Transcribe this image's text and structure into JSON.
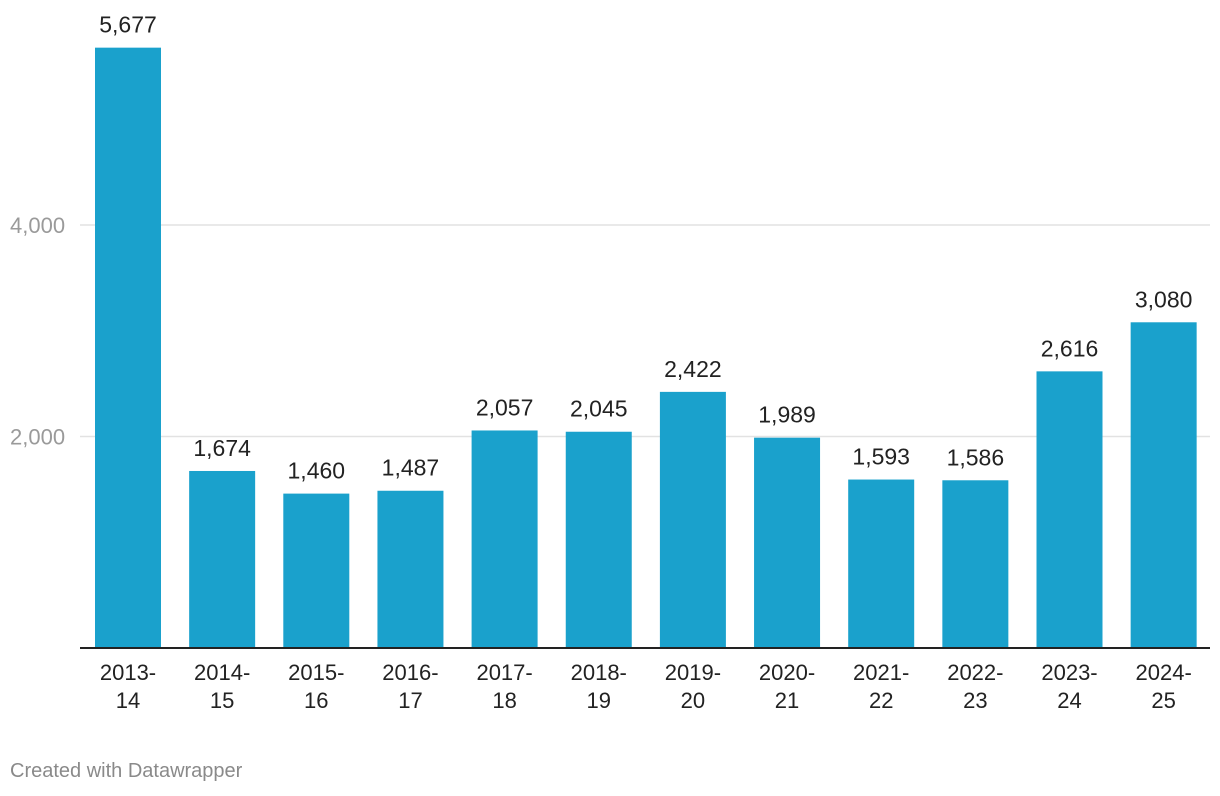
{
  "credit": "Created with Datawrapper",
  "colors": {
    "bar": "#1aa1cc",
    "gridline": "#e2e2e2",
    "baseline": "#222222",
    "value_text": "#222222",
    "y_tick_text": "#9a9a9a"
  },
  "chart_data": {
    "type": "bar",
    "title": "",
    "xlabel": "",
    "ylabel": "",
    "categories": [
      [
        "2013-",
        "14"
      ],
      [
        "2014-",
        "15"
      ],
      [
        "2015-",
        "16"
      ],
      [
        "2016-",
        "17"
      ],
      [
        "2017-",
        "18"
      ],
      [
        "2018-",
        "19"
      ],
      [
        "2019-",
        "20"
      ],
      [
        "2020-",
        "21"
      ],
      [
        "2021-",
        "22"
      ],
      [
        "2022-",
        "23"
      ],
      [
        "2023-",
        "24"
      ],
      [
        "2024-",
        "25"
      ]
    ],
    "values": [
      5677,
      1674,
      1460,
      1487,
      2057,
      2045,
      2422,
      1989,
      1593,
      1586,
      2616,
      3080
    ],
    "value_labels": [
      "5,677",
      "1,674",
      "1,460",
      "1,487",
      "2,057",
      "2,045",
      "2,422",
      "1,989",
      "1,593",
      "1,586",
      "2,616",
      "3,080"
    ],
    "y_ticks": [
      {
        "value": 2000,
        "label": "2,000"
      },
      {
        "value": 4000,
        "label": "4,000"
      }
    ],
    "ylim": [
      0,
      6000
    ],
    "grid": true,
    "legend": "none"
  }
}
